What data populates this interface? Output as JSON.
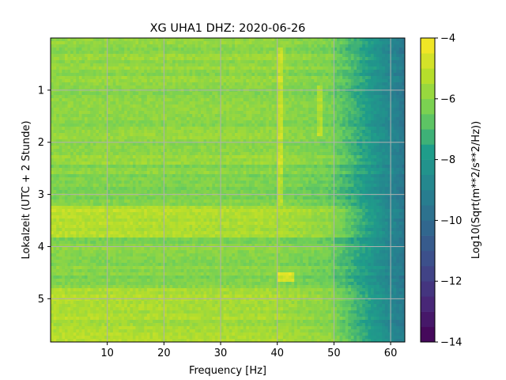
{
  "chart_data": {
    "type": "heatmap",
    "title": "XG UHA1  DHZ: 2020-06-26",
    "xlabel": "Frequency [Hz]",
    "ylabel": "Lokalzeit (UTC + 2 Stunde)",
    "colorbar_label": "Log10(Sqrt(m**2/s**2/Hz))",
    "xlim": [
      0,
      62.5
    ],
    "ylim": [
      5.83,
      0
    ],
    "x_ticks": [
      10,
      20,
      30,
      40,
      50,
      60
    ],
    "y_ticks": [
      1,
      2,
      3,
      4,
      5
    ],
    "color_range": [
      -14,
      -4
    ],
    "colorbar_ticks": [
      -4,
      -6,
      -8,
      -10,
      -12,
      -14
    ],
    "colormap": "viridis",
    "grid": true,
    "features": [
      {
        "kind": "high-frequency roll-off",
        "freq_from": 50,
        "freq_to": 62.5,
        "value_from": -6.5,
        "value_to": -9.5
      },
      {
        "kind": "elevated band",
        "time_from": 3.2,
        "time_to": 3.8,
        "value": -5.2
      },
      {
        "kind": "elevated band",
        "time_from": 4.8,
        "time_to": 5.83,
        "value": -5.4
      },
      {
        "kind": "spectral line",
        "freq": 47.5,
        "time_from": 0.9,
        "time_to": 1.9
      },
      {
        "kind": "spectral line",
        "freq": 40.5,
        "time_from": 0.2,
        "time_to": 3.2
      },
      {
        "kind": "hot spot",
        "freq_from": 40,
        "freq_to": 43,
        "time_from": 4.5,
        "time_to": 4.7,
        "value": -4.6
      }
    ]
  },
  "colors": {
    "viridis": [
      "#440154",
      "#482777",
      "#3f4a8a",
      "#31678e",
      "#26838f",
      "#1f9d8a",
      "#6cce5a",
      "#b6de2b",
      "#fee825"
    ],
    "grid": "#b0b0b0"
  }
}
